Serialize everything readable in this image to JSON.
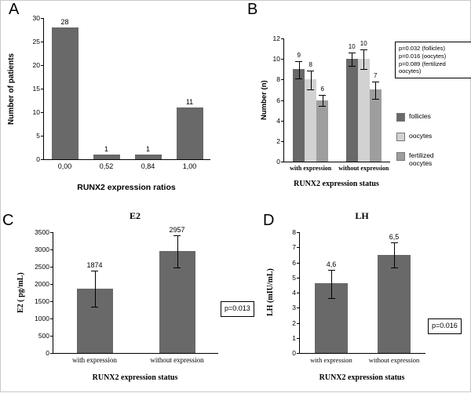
{
  "bar_color_dark": "#696969",
  "chart_data": [
    {
      "type": "bar",
      "panel_letter": "A",
      "title": "",
      "categories": [
        "0,00",
        "0,52",
        "0,84",
        "1,00"
      ],
      "values": [
        28,
        1,
        1,
        11
      ],
      "bar_labels": [
        "28",
        "1",
        "1",
        "11"
      ],
      "bar_color": "#696969",
      "xlabel": "RUNX2 expression ratios",
      "ylabel": "Number of patients",
      "ylim": [
        0,
        30
      ],
      "yticks": [
        0,
        5,
        10,
        15,
        20,
        25,
        30
      ],
      "grid": false,
      "legend_position": "none"
    },
    {
      "type": "bar",
      "panel_letter": "B",
      "title": "",
      "categories": [
        "with expression",
        "without expression"
      ],
      "series": [
        {
          "name": "follicles",
          "values": [
            9,
            10
          ],
          "errors": [
            0.8,
            0.6
          ],
          "color": "#696969"
        },
        {
          "name": "oocytes",
          "values": [
            8,
            10
          ],
          "errors": [
            0.9,
            0.9
          ],
          "color": "#d2d2d2"
        },
        {
          "name": "fertilized oocytes",
          "values": [
            6,
            7
          ],
          "errors": [
            0.5,
            0.8
          ],
          "color": "#9e9e9e"
        }
      ],
      "bar_labels": [
        [
          "9",
          "8",
          "6"
        ],
        [
          "10",
          "10",
          "7"
        ]
      ],
      "xlabel": "RUNX2 expression status",
      "ylabel": "Number (n)",
      "ylim": [
        0,
        12
      ],
      "yticks": [
        0,
        2,
        4,
        6,
        8,
        10,
        12
      ],
      "grid": false,
      "legend_position": "right",
      "annotation_lines": [
        "p=0.032 (follicles)",
        "p=0.016 (oocytes)",
        "p=0.089 (fertilized oocytes)"
      ]
    },
    {
      "type": "bar",
      "panel_letter": "C",
      "title": "E2",
      "categories": [
        "with expression",
        "without expression"
      ],
      "values": [
        1874,
        2957
      ],
      "errors": [
        520,
        450
      ],
      "bar_labels": [
        "1874",
        "2957"
      ],
      "bar_color": "#696969",
      "xlabel": "RUNX2 expression status",
      "ylabel": "E2 ( pg/mL)",
      "ylim": [
        0,
        3500
      ],
      "yticks": [
        0,
        500,
        1000,
        1500,
        2000,
        2500,
        3000,
        3500
      ],
      "grid": false,
      "legend_position": "none",
      "annotation": "p=0.013"
    },
    {
      "type": "bar",
      "panel_letter": "D",
      "title": "LH",
      "categories": [
        "with expression",
        "without expression"
      ],
      "values": [
        4.6,
        6.5
      ],
      "errors": [
        0.9,
        0.8
      ],
      "bar_labels": [
        "4,6",
        "6,5"
      ],
      "bar_color": "#696969",
      "xlabel": "RUNX2 expression status",
      "ylabel": "LH (mIU/mL)",
      "ylim": [
        0,
        8
      ],
      "yticks": [
        0,
        1,
        2,
        3,
        4,
        5,
        6,
        7,
        8
      ],
      "grid": false,
      "legend_position": "none",
      "annotation": "p=0.016"
    }
  ]
}
